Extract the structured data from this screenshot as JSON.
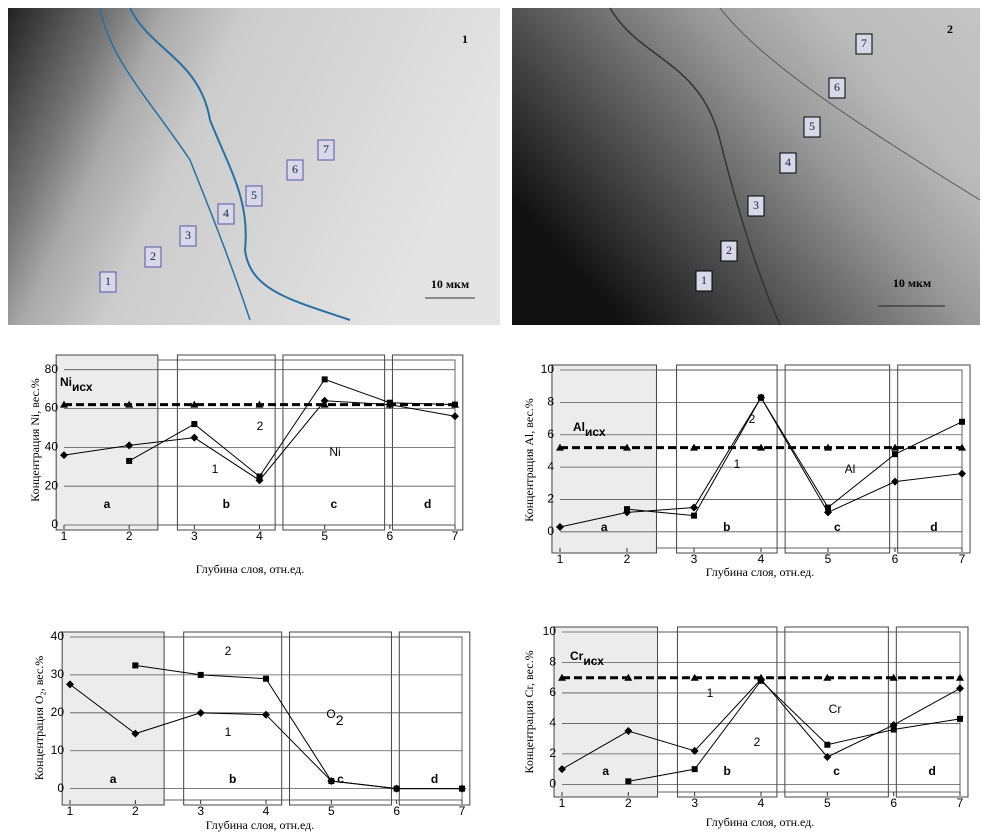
{
  "images": [
    {
      "label": "1",
      "scale": "10 мкм",
      "zones": [
        "1",
        "2",
        "3",
        "4",
        "5",
        "6",
        "7"
      ]
    },
    {
      "label": "2",
      "scale": "10 мкм",
      "zones": [
        "1",
        "2",
        "3",
        "4",
        "5",
        "6",
        "7"
      ]
    }
  ],
  "chart_data": [
    {
      "type": "line",
      "element": "Ni",
      "ref_label": "Ni",
      "ref_sub": "исх",
      "y_label": "Концентрация Ni, вес.%",
      "x_label": "Глубина слоя, отн.ед.",
      "zones": [
        "a",
        "b",
        "c",
        "d"
      ],
      "x": [
        1,
        2,
        3,
        4,
        5,
        6,
        7
      ],
      "xlim": [
        1,
        7
      ],
      "xticks": [
        1,
        2,
        3,
        4,
        5,
        6,
        7
      ],
      "ylim": [
        0,
        85
      ],
      "yticks": [
        0,
        20,
        40,
        60,
        80
      ],
      "reference": {
        "color": "#000000",
        "values": [
          62,
          62,
          62,
          62,
          62,
          62,
          62
        ]
      },
      "series": [
        {
          "name": "1",
          "color": "#000000",
          "values": [
            36,
            41,
            45,
            23,
            64,
            62,
            56
          ]
        },
        {
          "name": "2",
          "color": "#000000",
          "values": [
            null,
            33,
            52,
            25,
            75,
            63,
            62
          ]
        }
      ]
    },
    {
      "type": "line",
      "element": "Al",
      "ref_label": "Al",
      "ref_sub": "исх",
      "y_label": "Концентрация Al, вес.%",
      "x_label": "Глубина слоя, отн.ед.",
      "zones": [
        "a",
        "b",
        "c",
        "d"
      ],
      "x": [
        1,
        2,
        3,
        4,
        5,
        6,
        7
      ],
      "xlim": [
        1,
        7
      ],
      "xticks": [
        1,
        2,
        3,
        4,
        5,
        6,
        7
      ],
      "ylim": [
        -1,
        10
      ],
      "yticks": [
        0,
        2,
        4,
        6,
        8,
        10
      ],
      "reference": {
        "color": "#000000",
        "values": [
          5.2,
          5.2,
          5.2,
          5.2,
          5.2,
          5.2,
          5.2
        ]
      },
      "series": [
        {
          "name": "1",
          "color": "#000000",
          "values": [
            0.3,
            1.2,
            1.5,
            8.3,
            1.2,
            3.1,
            3.6
          ]
        },
        {
          "name": "2",
          "color": "#000000",
          "values": [
            null,
            1.4,
            1.0,
            8.3,
            1.5,
            4.8,
            6.8
          ]
        }
      ]
    },
    {
      "type": "line",
      "element": "O",
      "element_sub": "2",
      "y_label": "Концентрация O₂, вес.%",
      "x_label": "Глубина слоя, отн.ед.",
      "zones": [
        "a",
        "b",
        "c",
        "d"
      ],
      "x": [
        1,
        2,
        3,
        4,
        5,
        6,
        7
      ],
      "xlim": [
        1,
        7
      ],
      "xticks": [
        1,
        2,
        3,
        4,
        5,
        6,
        7
      ],
      "ylim": [
        -3,
        40
      ],
      "yticks": [
        0,
        10,
        20,
        30,
        40
      ],
      "series": [
        {
          "name": "1",
          "color": "#000000",
          "values": [
            27.5,
            14.5,
            20,
            19.5,
            2,
            0,
            0
          ]
        },
        {
          "name": "2",
          "color": "#000000",
          "values": [
            null,
            32.5,
            30,
            29,
            2,
            0,
            0
          ]
        }
      ]
    },
    {
      "type": "line",
      "element": "Cr",
      "ref_label": "Cr",
      "ref_sub": "исх",
      "y_label": "Концентрация Cr, вес.%",
      "x_label": "Глубина слоя, отн.ед.",
      "zones": [
        "a",
        "b",
        "c",
        "d"
      ],
      "x": [
        1,
        2,
        3,
        4,
        5,
        6,
        7
      ],
      "xlim": [
        1,
        7
      ],
      "xticks": [
        1,
        2,
        3,
        4,
        5,
        6,
        7
      ],
      "ylim": [
        -0.5,
        10
      ],
      "yticks": [
        0,
        2,
        4,
        6,
        8,
        10
      ],
      "reference": {
        "color": "#000000",
        "values": [
          7,
          7,
          7,
          7,
          7,
          7,
          7
        ]
      },
      "series": [
        {
          "name": "1",
          "color": "#000000",
          "values": [
            1,
            3.5,
            2.2,
            6.9,
            1.8,
            3.9,
            6.3
          ]
        },
        {
          "name": "2",
          "color": "#000000",
          "values": [
            null,
            0.2,
            1.0,
            6.8,
            2.6,
            3.6,
            4.3
          ]
        }
      ]
    }
  ]
}
